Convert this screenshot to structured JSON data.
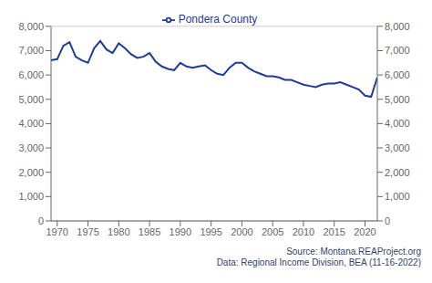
{
  "chart_data": {
    "type": "line",
    "x": [
      1969,
      1970,
      1971,
      1972,
      1973,
      1974,
      1975,
      1976,
      1977,
      1978,
      1979,
      1980,
      1981,
      1982,
      1983,
      1984,
      1985,
      1986,
      1987,
      1988,
      1989,
      1990,
      1991,
      1992,
      1993,
      1994,
      1995,
      1996,
      1997,
      1998,
      1999,
      2000,
      2001,
      2002,
      2003,
      2004,
      2005,
      2006,
      2007,
      2008,
      2009,
      2010,
      2011,
      2012,
      2013,
      2014,
      2015,
      2016,
      2017,
      2018,
      2019,
      2020,
      2021,
      2022
    ],
    "series": [
      {
        "name": "Pondera County",
        "color": "#1f3a9a",
        "values": [
          6600,
          6650,
          7200,
          7350,
          6750,
          6600,
          6500,
          7100,
          7400,
          7050,
          6900,
          7300,
          7100,
          6850,
          6700,
          6750,
          6900,
          6550,
          6350,
          6250,
          6200,
          6500,
          6350,
          6300,
          6350,
          6400,
          6200,
          6050,
          6000,
          6300,
          6500,
          6500,
          6300,
          6150,
          6050,
          5950,
          5950,
          5900,
          5800,
          5800,
          5700,
          5600,
          5550,
          5500,
          5600,
          5650,
          5650,
          5700,
          5600,
          5500,
          5400,
          5150,
          5100,
          5900
        ]
      }
    ],
    "xlim": [
      1969,
      2022
    ],
    "xticks": [
      1970,
      1975,
      1980,
      1985,
      1990,
      1995,
      2000,
      2005,
      2010,
      2015,
      2020
    ],
    "ylim": [
      0,
      8000
    ],
    "yticks": [
      0,
      {
        "value": 1000,
        "label": "1,000"
      },
      {
        "value": 2000,
        "label": "2,000"
      },
      {
        "value": 3000,
        "label": "3,000"
      },
      {
        "value": 4000,
        "label": "4,000"
      },
      {
        "value": 5000,
        "label": "5,000"
      },
      {
        "value": 6000,
        "label": "6,000"
      },
      {
        "value": 7000,
        "label": "7,000"
      },
      {
        "value": 8000,
        "label": "8,000"
      }
    ],
    "y2lim": [
      0,
      8000
    ],
    "y2ticks": [
      0,
      {
        "value": 1000,
        "label": "1,000"
      },
      {
        "value": 2000,
        "label": "2,000"
      },
      {
        "value": 3000,
        "label": "3,000"
      },
      {
        "value": 4000,
        "label": "4,000"
      },
      {
        "value": 5000,
        "label": "5,000"
      },
      {
        "value": 6000,
        "label": "6,000"
      },
      {
        "value": 7000,
        "label": "7,000"
      },
      {
        "value": 8000,
        "label": "8,000"
      }
    ],
    "grid": true,
    "legend": "top",
    "annotations": [
      "Source: Montana.REAProject.org",
      "Data: Regional Income Division, BEA (11-16-2022)"
    ]
  }
}
